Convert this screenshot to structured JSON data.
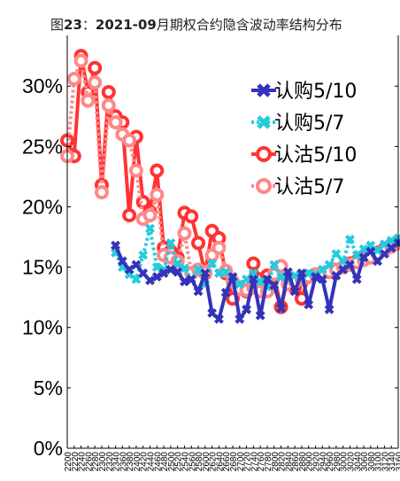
{
  "chart_data": {
    "type": "line",
    "title": "图23：2021-09月期权合约隐含波动率结构分布",
    "title_parts": [
      {
        "text": "图",
        "bold": false
      },
      {
        "text": "23",
        "bold": true
      },
      {
        "text": "：",
        "bold": false
      },
      {
        "text": "2021-09",
        "bold": true
      },
      {
        "text": "月期权合约隐含波动率结构分布",
        "bold": false
      }
    ],
    "xlabel": "",
    "ylabel": "",
    "ylim": [
      0,
      30
    ],
    "yticks": [
      0,
      5,
      10,
      15,
      20,
      25,
      30
    ],
    "ytick_labels": [
      "0%",
      "5%",
      "10%",
      "15%",
      "20%",
      "25%",
      "30%"
    ],
    "xlim": [
      2200,
      3160
    ],
    "xticks": [
      2200,
      2220,
      2240,
      2260,
      2280,
      2300,
      2320,
      2340,
      2360,
      2380,
      2400,
      2420,
      2440,
      2460,
      2480,
      2500,
      2520,
      2540,
      2560,
      2580,
      2600,
      2620,
      2640,
      2660,
      2680,
      2700,
      2720,
      2740,
      2760,
      2780,
      2800,
      2820,
      2840,
      2860,
      2880,
      2900,
      2920,
      2940,
      2960,
      2980,
      3000,
      3020,
      3040,
      3060,
      3080,
      3100,
      3120,
      3140,
      3160
    ],
    "xtick_labels": [
      "2200",
      "2220",
      "2240",
      "2260",
      "2280",
      "2300",
      "2320",
      "2340",
      "2360",
      "2380",
      "2400",
      "2420",
      "2440",
      "2460",
      "2480",
      "2500",
      "2520",
      "2540",
      "2560",
      "2580",
      "2600",
      "2620",
      "2640",
      "2660",
      "2680",
      "2700",
      "2720",
      "2740",
      "2760",
      "2780",
      "2800",
      "2820",
      "2840",
      "2860",
      "2880",
      "2900",
      "2920",
      "2940",
      "2960",
      "2980",
      "3000",
      "3020",
      "3040",
      "3060",
      "3080",
      "3100",
      "3120",
      "3140",
      "3160"
    ],
    "grid": false,
    "legend_position": "top-right",
    "series": [
      {
        "name": "认购5/10",
        "color": "#3333bb",
        "marker": "x-thick",
        "line": "solid",
        "x": [
          2340,
          2360,
          2380,
          2400,
          2420,
          2440,
          2460,
          2480,
          2500,
          2520,
          2540,
          2560,
          2580,
          2600,
          2620,
          2640,
          2660,
          2680,
          2700,
          2720,
          2740,
          2760,
          2780,
          2800,
          2820,
          2840,
          2860,
          2880,
          2900,
          2920,
          2940,
          2960,
          2980,
          3000,
          3020,
          3040,
          3060,
          3080,
          3100,
          3120,
          3140,
          3160
        ],
        "y": [
          16.8,
          15.5,
          14.8,
          15.2,
          14.5,
          13.9,
          14.2,
          14.5,
          14.8,
          14.6,
          13.8,
          14.0,
          13.0,
          14.5,
          11.2,
          10.7,
          12.9,
          14.2,
          10.7,
          11.5,
          14.0,
          11.0,
          14.0,
          13.5,
          11.6,
          14.6,
          13.0,
          14.5,
          11.9,
          14.2,
          14.0,
          11.5,
          14.3,
          14.8,
          15.2,
          14.0,
          15.8,
          16.3,
          15.5,
          16.1,
          16.6,
          17.0
        ]
      },
      {
        "name": "认购5/7",
        "color": "#22ccdd",
        "marker": "x-thick",
        "line": "dotted",
        "x": [
          2340,
          2360,
          2380,
          2400,
          2420,
          2440,
          2460,
          2480,
          2500,
          2520,
          2540,
          2560,
          2580,
          2600,
          2620,
          2640,
          2660,
          2680,
          2700,
          2720,
          2740,
          2760,
          2780,
          2800,
          2820,
          2840,
          2860,
          2880,
          2900,
          2920,
          2940,
          2960,
          2980,
          3000,
          3020,
          3040,
          3060,
          3080,
          3100,
          3120,
          3140,
          3160
        ],
        "y": [
          16.2,
          15.0,
          14.4,
          14.0,
          16.0,
          18.2,
          15.0,
          14.8,
          17.0,
          15.3,
          14.9,
          14.0,
          14.8,
          13.6,
          15.3,
          14.5,
          14.6,
          13.9,
          13.6,
          14.0,
          14.5,
          13.8,
          13.4,
          15.2,
          14.2,
          14.0,
          14.3,
          14.0,
          14.5,
          14.4,
          14.8,
          15.2,
          16.1,
          15.5,
          17.3,
          16.0,
          16.5,
          16.8,
          16.4,
          16.9,
          17.2,
          17.4
        ]
      },
      {
        "name": "认沽5/10",
        "color": "#ff3333",
        "marker": "circle-open",
        "line": "solid",
        "x": [
          2200,
          2220,
          2240,
          2260,
          2280,
          2300,
          2320,
          2340,
          2360,
          2380,
          2400,
          2420,
          2440,
          2460,
          2480,
          2500,
          2520,
          2540,
          2560,
          2580,
          2600,
          2620,
          2640,
          2660,
          2680,
          2700,
          2720,
          2740,
          2760,
          2780,
          2800,
          2820,
          2840,
          2860,
          2880,
          2900,
          2920,
          2940,
          2960,
          2980,
          3000,
          3020,
          3040,
          3060,
          3080,
          3100,
          3120,
          3140,
          3160
        ],
        "y": [
          25.5,
          24.2,
          32.5,
          29.5,
          31.5,
          21.8,
          29.5,
          27.5,
          27.0,
          19.3,
          25.8,
          20.4,
          19.6,
          23.0,
          16.6,
          16.3,
          15.8,
          19.5,
          19.2,
          17.0,
          14.5,
          18.0,
          17.4,
          14.5,
          12.4,
          13.3,
          13.0,
          15.3,
          14.0,
          14.3,
          14.2,
          11.7,
          14.1,
          13.3,
          12.4,
          14.2,
          14.4,
          14.5,
          14.6,
          14.8,
          15.0,
          15.3,
          15.5,
          15.7,
          15.9,
          16.2,
          16.5,
          16.8,
          17.0
        ]
      },
      {
        "name": "认沽5/7",
        "color": "#ff8888",
        "marker": "circle-open",
        "line": "dotted",
        "x": [
          2200,
          2220,
          2240,
          2260,
          2280,
          2300,
          2320,
          2340,
          2360,
          2380,
          2400,
          2420,
          2440,
          2460,
          2480,
          2500,
          2520,
          2540,
          2560,
          2580,
          2600,
          2620,
          2640,
          2660,
          2680,
          2700,
          2720,
          2740,
          2760,
          2780,
          2800,
          2820,
          2840,
          2860,
          2880,
          2900,
          2920,
          2940,
          2960,
          2980,
          3000,
          3020,
          3040,
          3060,
          3080,
          3100,
          3120,
          3140,
          3160
        ],
        "y": [
          24.2,
          30.6,
          32.1,
          28.8,
          30.3,
          21.2,
          28.4,
          27.0,
          26.0,
          25.5,
          23.0,
          19.0,
          19.3,
          21.0,
          16.0,
          15.8,
          15.5,
          17.8,
          14.5,
          14.8,
          14.6,
          16.0,
          16.6,
          14.7,
          13.8,
          13.2,
          13.1,
          13.3,
          13.0,
          13.0,
          14.4,
          15.1,
          13.6,
          13.8,
          14.0,
          14.2,
          14.4,
          14.5,
          14.6,
          14.8,
          15.0,
          15.2,
          15.4,
          15.6,
          15.8,
          16.1,
          16.4,
          16.7,
          17.0
        ]
      }
    ]
  }
}
